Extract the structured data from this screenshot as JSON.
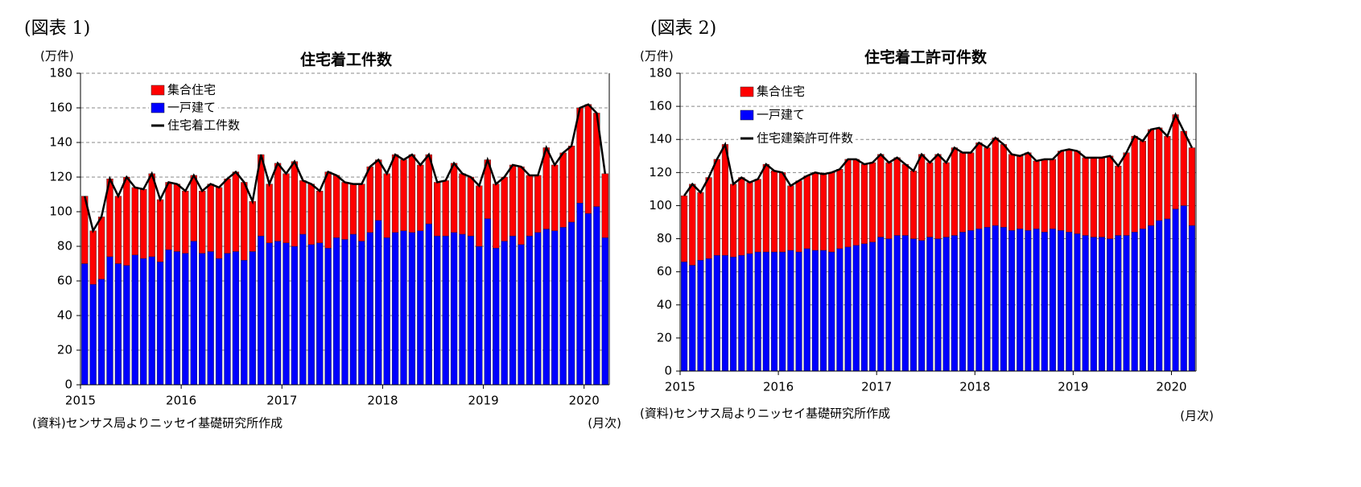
{
  "chart_data": [
    {
      "type": "bar",
      "panel": "(図表 1)",
      "title": "住宅着工件数",
      "y_unit": "(万件)",
      "note": "(資料)センサス局よりニッセイ基礎研究所作成",
      "x_label": "(月次)",
      "stacked": true,
      "grid": true,
      "categories": [
        "2015",
        null,
        null,
        null,
        null,
        null,
        null,
        null,
        null,
        null,
        null,
        null,
        "2016",
        null,
        null,
        null,
        null,
        null,
        null,
        null,
        null,
        null,
        null,
        null,
        "2017",
        null,
        null,
        null,
        null,
        null,
        null,
        null,
        null,
        null,
        null,
        null,
        "2018",
        null,
        null,
        null,
        null,
        null,
        null,
        null,
        null,
        null,
        null,
        null,
        "2019",
        null,
        null,
        null,
        null,
        null,
        null,
        null,
        null,
        null,
        null,
        null,
        "2020",
        null,
        null
      ],
      "ylim": [
        0,
        180
      ],
      "yticks": [
        0,
        20,
        40,
        60,
        80,
        100,
        120,
        140,
        160,
        180
      ],
      "series": [
        {
          "name": "一戸建て",
          "color": "#0000ff",
          "values": [
            70,
            58,
            61,
            74,
            70,
            69,
            75,
            73,
            74,
            71,
            78,
            77,
            76,
            83,
            76,
            77,
            73,
            76,
            77,
            72,
            77,
            86,
            82,
            83,
            82,
            80,
            87,
            81,
            82,
            79,
            85,
            84,
            87,
            83,
            88,
            95,
            85,
            88,
            89,
            88,
            89,
            93,
            86,
            86,
            88,
            87,
            86,
            80,
            96,
            79,
            83,
            86,
            81,
            86,
            88,
            90,
            89,
            91,
            94,
            105,
            99,
            103,
            85
          ]
        },
        {
          "name": "集合住宅",
          "color": "#ff0000",
          "values": [
            39,
            31,
            36,
            45,
            39,
            51,
            39,
            40,
            48,
            36,
            39,
            39,
            36,
            38,
            36,
            39,
            41,
            43,
            46,
            45,
            29,
            47,
            34,
            45,
            40,
            49,
            31,
            35,
            30,
            44,
            36,
            33,
            29,
            33,
            38,
            35,
            37,
            45,
            41,
            45,
            38,
            40,
            31,
            32,
            40,
            35,
            34,
            35,
            34,
            37,
            37,
            41,
            45,
            35,
            33,
            47,
            38,
            43,
            44,
            55,
            63,
            54,
            37
          ]
        },
        {
          "name": "住宅着工件数",
          "color": "#000000",
          "type": "line",
          "values": [
            109,
            89,
            97,
            119,
            109,
            120,
            114,
            113,
            122,
            107,
            117,
            116,
            112,
            121,
            112,
            116,
            114,
            119,
            123,
            117,
            106,
            133,
            116,
            128,
            122,
            129,
            118,
            116,
            112,
            123,
            121,
            117,
            116,
            116,
            126,
            130,
            122,
            133,
            130,
            133,
            127,
            133,
            117,
            118,
            128,
            122,
            120,
            115,
            130,
            116,
            120,
            127,
            126,
            121,
            121,
            137,
            127,
            134,
            138,
            160,
            162,
            157,
            122
          ]
        }
      ]
    },
    {
      "type": "bar",
      "panel": "(図表 2)",
      "title": "住宅着工許可件数",
      "y_unit": "(万件)",
      "note": "(資料)センサス局よりニッセイ基礎研究所作成",
      "x_label": "(月次)",
      "stacked": true,
      "grid": true,
      "categories": [
        "2015",
        null,
        null,
        null,
        null,
        null,
        null,
        null,
        null,
        null,
        null,
        null,
        "2016",
        null,
        null,
        null,
        null,
        null,
        null,
        null,
        null,
        null,
        null,
        null,
        "2017",
        null,
        null,
        null,
        null,
        null,
        null,
        null,
        null,
        null,
        null,
        null,
        "2018",
        null,
        null,
        null,
        null,
        null,
        null,
        null,
        null,
        null,
        null,
        null,
        "2019",
        null,
        null,
        null,
        null,
        null,
        null,
        null,
        null,
        null,
        null,
        null,
        "2020",
        null,
        null
      ],
      "ylim": [
        0,
        180
      ],
      "yticks": [
        0,
        20,
        40,
        60,
        80,
        100,
        120,
        140,
        160,
        180
      ],
      "series": [
        {
          "name": "一戸建て",
          "color": "#0000ff",
          "values": [
            66,
            64,
            67,
            68,
            70,
            70,
            69,
            70,
            71,
            72,
            72,
            72,
            72,
            73,
            72,
            74,
            73,
            73,
            72,
            74,
            75,
            76,
            77,
            78,
            81,
            80,
            82,
            82,
            80,
            79,
            81,
            80,
            81,
            82,
            84,
            85,
            86,
            87,
            88,
            87,
            85,
            86,
            85,
            86,
            84,
            86,
            85,
            84,
            83,
            82,
            81,
            81,
            80,
            82,
            82,
            84,
            86,
            88,
            91,
            92,
            98,
            100,
            88
          ]
        },
        {
          "name": "集合住宅",
          "color": "#ff0000",
          "values": [
            40,
            49,
            41,
            49,
            58,
            67,
            44,
            47,
            43,
            44,
            53,
            49,
            48,
            39,
            43,
            44,
            47,
            46,
            48,
            48,
            53,
            52,
            48,
            48,
            50,
            46,
            47,
            43,
            41,
            52,
            45,
            51,
            45,
            53,
            48,
            47,
            52,
            48,
            53,
            50,
            46,
            44,
            47,
            41,
            44,
            42,
            48,
            50,
            50,
            47,
            48,
            48,
            50,
            42,
            50,
            58,
            53,
            58,
            56,
            50,
            57,
            45,
            47
          ]
        },
        {
          "name": "住宅建築許可件数",
          "color": "#000000",
          "type": "line",
          "values": [
            106,
            113,
            108,
            117,
            128,
            137,
            113,
            117,
            114,
            116,
            125,
            121,
            120,
            112,
            115,
            118,
            120,
            119,
            120,
            122,
            128,
            128,
            125,
            126,
            131,
            126,
            129,
            125,
            121,
            131,
            126,
            131,
            126,
            135,
            132,
            132,
            138,
            135,
            141,
            137,
            131,
            130,
            132,
            127,
            128,
            128,
            133,
            134,
            133,
            129,
            129,
            129,
            130,
            124,
            132,
            142,
            139,
            146,
            147,
            142,
            155,
            145,
            135
          ]
        }
      ]
    }
  ]
}
